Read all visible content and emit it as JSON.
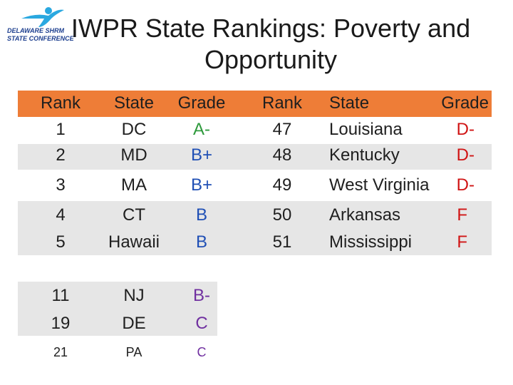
{
  "logo": {
    "line1": "DELAWARE SHRM",
    "line2": "STATE CONFERENCE"
  },
  "title_line1": "IWPR State Rankings: Poverty and",
  "title_line2": "Opportunity",
  "headers": {
    "rank": "Rank",
    "state": "State",
    "grade": "Grade"
  },
  "left_rows": [
    {
      "rank": "1",
      "state": "DC",
      "grade": "A-"
    },
    {
      "rank": "2",
      "state": "MD",
      "grade": "B+"
    },
    {
      "rank": "3",
      "state": "MA",
      "grade": "B+"
    },
    {
      "rank": "4",
      "state": "CT",
      "grade": "B"
    },
    {
      "rank": "5",
      "state": "Hawaii",
      "grade": "B"
    }
  ],
  "right_rows": [
    {
      "rank": "47",
      "state": "Louisiana",
      "grade": "D-"
    },
    {
      "rank": "48",
      "state": "Kentucky",
      "grade": "D-"
    },
    {
      "rank": "49",
      "state": "West Virginia",
      "grade": "D-"
    },
    {
      "rank": "50",
      "state": "Arkansas",
      "grade": "F"
    },
    {
      "rank": "51",
      "state": "Mississippi",
      "grade": "F"
    }
  ],
  "extra_rows": [
    {
      "rank": "11",
      "state": "NJ",
      "grade": "B-"
    },
    {
      "rank": "19",
      "state": "DE",
      "grade": "C"
    },
    {
      "rank": "21",
      "state": "PA",
      "grade": "C"
    }
  ],
  "colors": {
    "header": "#ee7d37",
    "band": "#e6e6e6",
    "grade_a": "#2e9a3c",
    "grade_b": "#1f4fb5",
    "grade_bminus_c": "#7030a0",
    "grade_d_f": "#d01414"
  }
}
